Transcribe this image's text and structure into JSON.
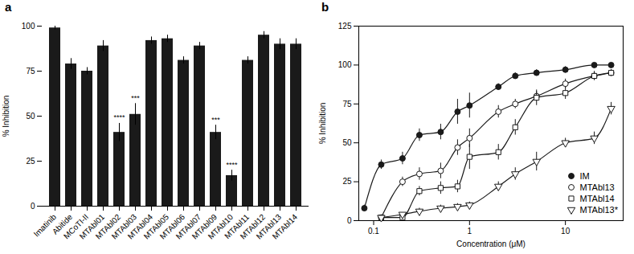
{
  "chart_data": [
    {
      "type": "bar",
      "title": "a",
      "categories": [
        "Imatinib",
        "Abitide",
        "MCoTI-II",
        "MTAbl01",
        "MTAbl02",
        "MTAbl03",
        "MTAbl04",
        "MTAbl05",
        "MTAbl06",
        "MTAbl07",
        "MTAbl09",
        "MTAbl10",
        "MTAbl11",
        "MTAbl12",
        "MTAbl13",
        "MTAbl14"
      ],
      "values": [
        99,
        79,
        75,
        89,
        41,
        51,
        92,
        93,
        81,
        89,
        41,
        17,
        81,
        95,
        90,
        90
      ],
      "errors": [
        1,
        3,
        2,
        3,
        5,
        6,
        2,
        2,
        2,
        2,
        4,
        3,
        2,
        2,
        3,
        3
      ],
      "color": "#1a1a1a",
      "ylabel": "% Inhibition",
      "ylim": [
        0,
        100
      ],
      "yticks": [
        0,
        25,
        50,
        75,
        100
      ],
      "grid": false,
      "annotations": [
        {
          "category": "MTAbl02",
          "text": "****"
        },
        {
          "category": "MTAbl03",
          "text": "***"
        },
        {
          "category": "MTAbl09",
          "text": "***"
        },
        {
          "category": "MTAbl10",
          "text": "****"
        }
      ]
    },
    {
      "type": "line",
      "title": "b",
      "xlabel": "Concentration (μM)",
      "ylabel": "% Inhibition",
      "log": "x",
      "xlim": [
        0.07,
        40
      ],
      "xticks": [
        0.1,
        1,
        10
      ],
      "ylim": [
        0,
        125
      ],
      "yticks": [
        0,
        25,
        50,
        75,
        100,
        125
      ],
      "grid": false,
      "legend": "lower right",
      "series": [
        {
          "name": "IM",
          "color": "#1a1a1a",
          "marker": "circle",
          "line_style": "solid",
          "x": [
            0.08,
            0.12,
            0.2,
            0.3,
            0.5,
            0.75,
            1.0,
            2.0,
            3.0,
            5.0,
            10.0,
            20.0,
            30.0
          ],
          "values": [
            8,
            36,
            40,
            55,
            57,
            70,
            74,
            86,
            93,
            95,
            97,
            100,
            100
          ],
          "errors": [
            2,
            3,
            4,
            4,
            5,
            8,
            8,
            2,
            2,
            2,
            2,
            1,
            1
          ]
        },
        {
          "name": "MTAbl13",
          "color": "#1a1a1a",
          "marker": "circle-open",
          "line_style": "solid",
          "x": [
            0.12,
            0.2,
            0.3,
            0.5,
            0.75,
            1.0,
            2.0,
            3.0,
            5.0,
            10.0,
            20.0,
            30.0
          ],
          "values": [
            2,
            25,
            30,
            32,
            47,
            53,
            70,
            75,
            80,
            88,
            93,
            95
          ],
          "errors": [
            1,
            3,
            4,
            5,
            5,
            6,
            4,
            3,
            3,
            3,
            2,
            2
          ]
        },
        {
          "name": "MTAbl14",
          "color": "#1a1a1a",
          "marker": "square-open",
          "line_style": "solid",
          "x": [
            0.12,
            0.2,
            0.3,
            0.5,
            0.75,
            1.0,
            2.0,
            3.0,
            5.0,
            10.0,
            20.0,
            30.0
          ],
          "values": [
            2,
            2,
            19,
            21,
            22,
            41,
            44,
            60,
            79,
            82,
            93,
            95
          ],
          "errors": [
            1,
            2,
            3,
            4,
            4,
            8,
            5,
            5,
            5,
            4,
            3,
            2
          ]
        },
        {
          "name": "MTAbl13*",
          "color": "#1a1a1a",
          "marker": "triangle-down-open",
          "line_style": "solid",
          "x": [
            0.12,
            0.2,
            0.3,
            0.5,
            0.75,
            1.0,
            2.0,
            3.0,
            5.0,
            10.0,
            20.0,
            30.0
          ],
          "values": [
            2,
            4,
            6,
            8,
            9,
            10,
            22,
            30,
            38,
            50,
            53,
            72
          ],
          "errors": [
            1,
            1,
            2,
            2,
            2,
            2,
            3,
            4,
            6,
            3,
            4,
            4
          ]
        }
      ]
    }
  ]
}
